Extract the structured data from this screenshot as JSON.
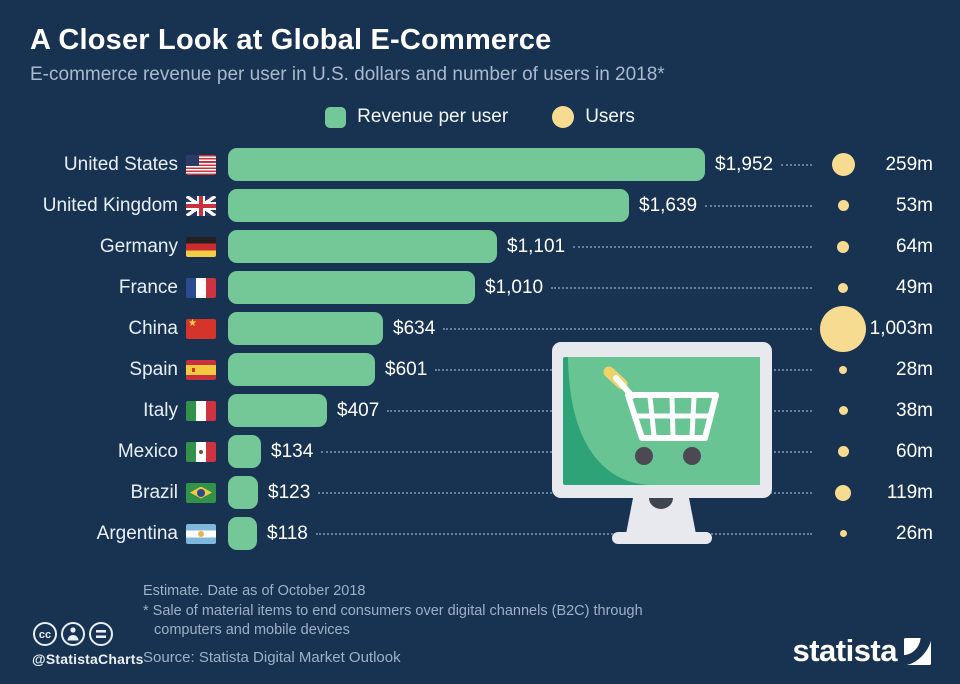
{
  "header": {
    "title": "A Closer Look at Global E-Commerce",
    "subtitle": "E-commerce revenue per user in U.S. dollars and number of users in 2018*"
  },
  "legend": {
    "revenue_label": "Revenue per user",
    "users_label": "Users"
  },
  "chart_data": {
    "type": "bar",
    "orientation": "horizontal",
    "title": "A Closer Look at Global E-Commerce",
    "subtitle": "E-commerce revenue per user in U.S. dollars and number of users in 2018*",
    "categories": [
      "United States",
      "United Kingdom",
      "Germany",
      "France",
      "China",
      "Spain",
      "Italy",
      "Mexico",
      "Brazil",
      "Argentina"
    ],
    "flags": [
      "us",
      "uk",
      "de",
      "fr",
      "cn",
      "es",
      "it",
      "mx",
      "br",
      "ar"
    ],
    "series": [
      {
        "name": "Revenue per user (U.S. dollars)",
        "values": [
          1952,
          1639,
          1101,
          1010,
          634,
          601,
          407,
          134,
          123,
          118
        ],
        "labels": [
          "$1,952",
          "$1,639",
          "$1,101",
          "$1,010",
          "$634",
          "$601",
          "$407",
          "$134",
          "$123",
          "$118"
        ]
      },
      {
        "name": "Users (millions)",
        "values": [
          259,
          53,
          64,
          49,
          1003,
          28,
          38,
          60,
          119,
          26
        ],
        "labels": [
          "259m",
          "53m",
          "64m",
          "49m",
          "1,003m",
          "28m",
          "38m",
          "60m",
          "119m",
          "26m"
        ]
      }
    ],
    "max_revenue": 1952,
    "max_users": 1003,
    "legend_position": "top",
    "grid": false,
    "colors": {
      "bar": "#74C796",
      "bubble": "#F6DB90",
      "background": "#173351",
      "text": "#FFFFFF",
      "muted": "#9DB1C7"
    }
  },
  "footer": {
    "note_line1": "Estimate. Date as of October 2018",
    "note_line2": "* Sale of material items to end consumers over digital channels (B2C) through",
    "note_line3": "computers and mobile devices",
    "source": "Source: Statista Digital Market Outlook",
    "credit": "@StatistaCharts",
    "brand": "statista"
  }
}
